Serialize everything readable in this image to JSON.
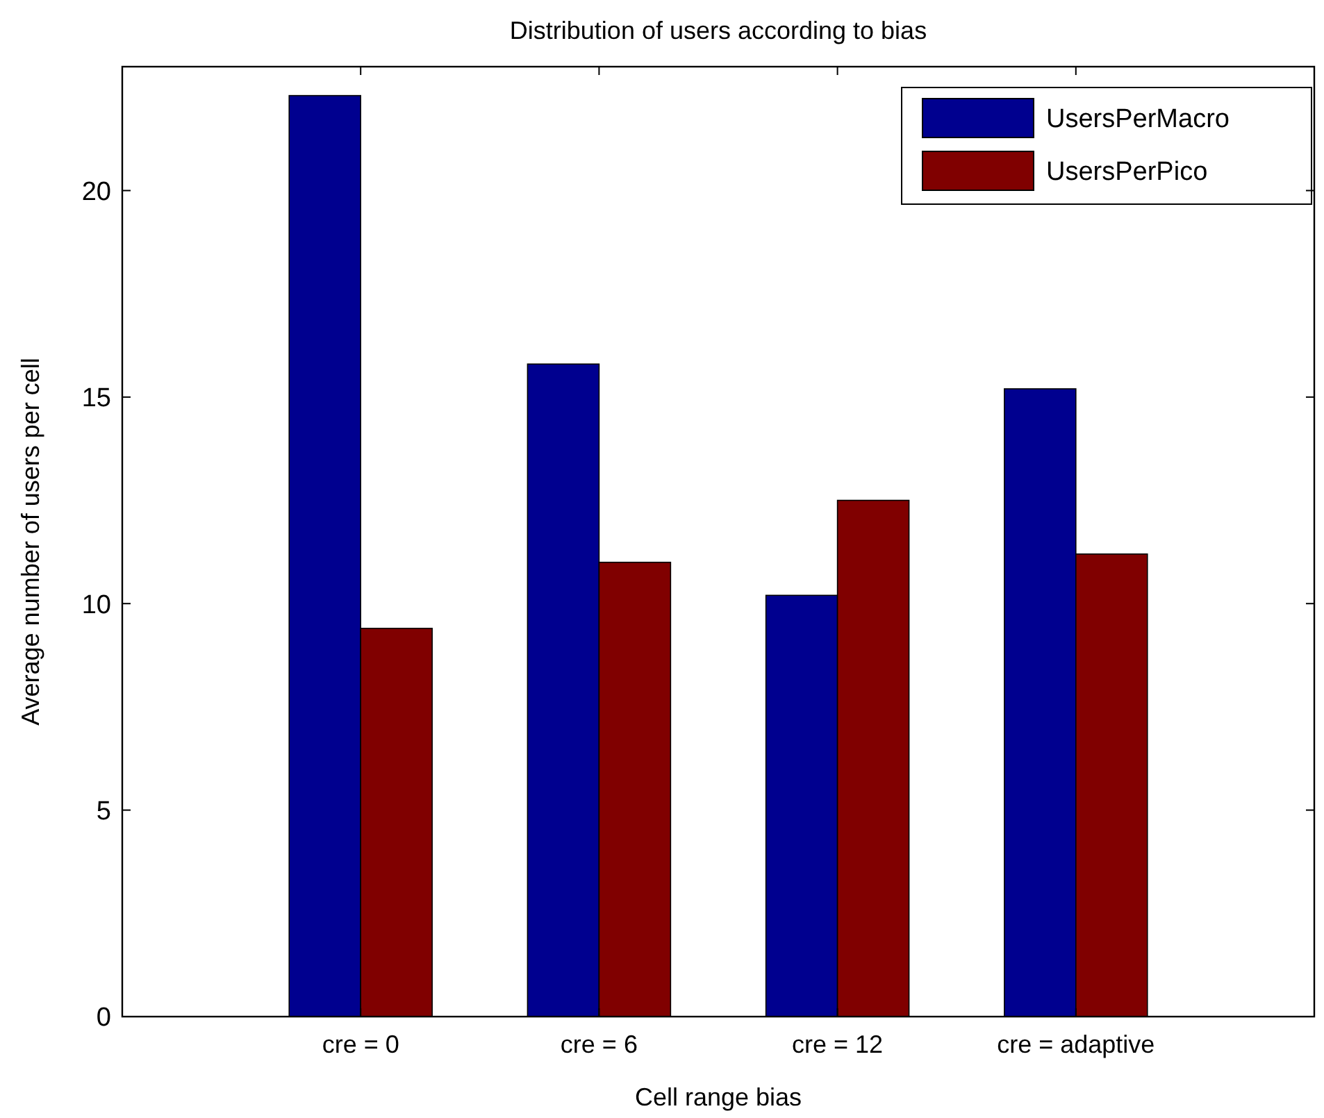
{
  "chart_data": {
    "type": "bar",
    "title": "Distribution of users according to bias",
    "xlabel": "Cell range bias",
    "ylabel": "Average number of users per cell",
    "categories": [
      "cre = 0",
      "cre = 6",
      "cre = 12",
      "cre = adaptive"
    ],
    "series": [
      {
        "name": "UsersPerMacro",
        "color": "#00008f",
        "values": [
          22.3,
          15.8,
          10.2,
          15.2
        ]
      },
      {
        "name": "UsersPerPico",
        "color": "#800000",
        "values": [
          9.4,
          11.0,
          12.5,
          11.2
        ]
      }
    ],
    "ylim": [
      0,
      23
    ],
    "yticks": [
      0,
      5,
      10,
      15,
      20
    ],
    "grid": false,
    "legend": "top right"
  }
}
